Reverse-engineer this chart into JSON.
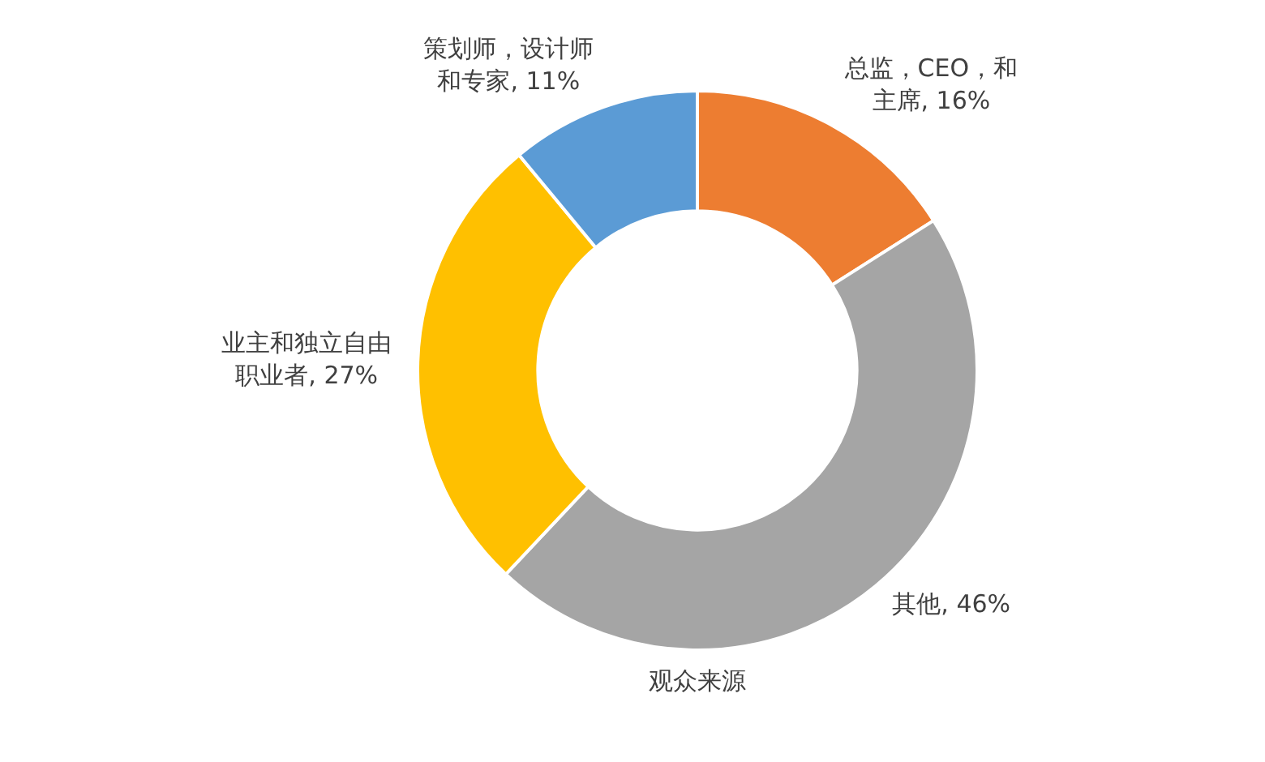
{
  "chart_data": {
    "type": "donut",
    "title": "观众来源",
    "categories": [
      "总监，CEO，和主席",
      "其他",
      "业主和独立自由职业者",
      "策划师，设计师和专家"
    ],
    "values": [
      16,
      46,
      27,
      11
    ],
    "value_labels": [
      ", 16%",
      ", 46%",
      ", 27%",
      ", 11%"
    ],
    "colors": [
      "#ed7d31",
      "#a5a5a5",
      "#ffc000",
      "#5b9bd5"
    ],
    "legend": false
  }
}
